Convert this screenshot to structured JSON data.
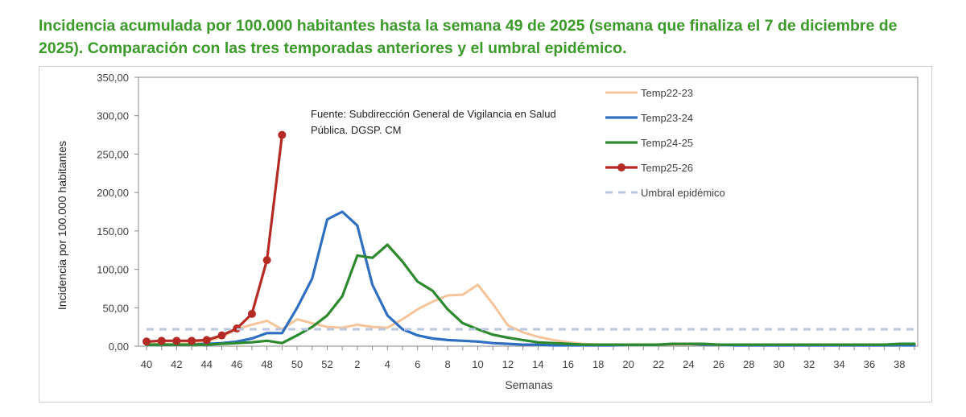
{
  "page": {
    "title": "Incidencia acumulada por 100.000 habitantes hasta la semana 49 de 2025 (semana que finaliza el 7 de diciembre de 2025). Comparación con las tres temporadas anteriores y el umbral epidémico."
  },
  "chart_data": {
    "type": "line",
    "title": "Incidencia acumulada por 100.000 habitantes hasta la semana 49 de 2025 (semana que finaliza el 7 de diciembre de 2025). Comparación con las tres temporadas anteriores y el umbral epidémico.",
    "xlabel": "Semanas",
    "ylabel": "Incidencia por 100.000 habitantes",
    "annotation": [
      "Fuente: Subdirección General de Vigilancia en Salud",
      "Pública. DGSP. CM"
    ],
    "ylim": [
      0,
      350
    ],
    "yticks": [
      "0,00",
      "50,00",
      "100,00",
      "150,00",
      "200,00",
      "250,00",
      "300,00",
      "350,00"
    ],
    "weeks": [
      40,
      41,
      42,
      43,
      44,
      45,
      46,
      47,
      48,
      49,
      50,
      51,
      52,
      1,
      2,
      3,
      4,
      5,
      6,
      7,
      8,
      9,
      10,
      11,
      12,
      13,
      14,
      15,
      16,
      17,
      18,
      19,
      20,
      21,
      22,
      23,
      24,
      25,
      26,
      27,
      28,
      29,
      30,
      31,
      32,
      33,
      34,
      35,
      36,
      37,
      38,
      39
    ],
    "xtick_labels": [
      "40",
      "42",
      "44",
      "46",
      "48",
      "50",
      "52",
      "2",
      "4",
      "6",
      "8",
      "10",
      "12",
      "14",
      "16",
      "18",
      "20",
      "22",
      "24",
      "26",
      "28",
      "30",
      "32",
      "34",
      "36",
      "38"
    ],
    "legend_position": "top-right",
    "series": [
      {
        "name": "Temp22-23",
        "color": "#f5c49a",
        "width": 3,
        "dash": "",
        "markers": false,
        "values": [
          3,
          3,
          3,
          4,
          6,
          12,
          22,
          28,
          33,
          22,
          35,
          30,
          25,
          24,
          28,
          25,
          24,
          35,
          48,
          58,
          66,
          67,
          80,
          55,
          27,
          18,
          12,
          8,
          5,
          3,
          2,
          2,
          2,
          2,
          2,
          2,
          2,
          2,
          2,
          2,
          2,
          2,
          2,
          2,
          2,
          2,
          2,
          2,
          2,
          2,
          2,
          2
        ]
      },
      {
        "name": "Temp23-24",
        "color": "#2f6fc2",
        "width": 3.2,
        "dash": "",
        "markers": false,
        "values": [
          2,
          2,
          2,
          2,
          3,
          4,
          6,
          10,
          17,
          17,
          50,
          88,
          165,
          175,
          157,
          80,
          40,
          22,
          14,
          10,
          8,
          7,
          6,
          4,
          3,
          2,
          2,
          1,
          1,
          1,
          1,
          1,
          2,
          2,
          2,
          3,
          3,
          2,
          2,
          1,
          1,
          1,
          1,
          1,
          1,
          1,
          1,
          1,
          1,
          1,
          1,
          1
        ]
      },
      {
        "name": "Temp24-25",
        "color": "#2e8a2e",
        "width": 3.2,
        "dash": "",
        "markers": false,
        "values": [
          2,
          2,
          2,
          2,
          2,
          3,
          4,
          5,
          7,
          4,
          14,
          25,
          40,
          65,
          118,
          115,
          132,
          110,
          84,
          72,
          48,
          30,
          22,
          15,
          11,
          8,
          5,
          4,
          3,
          2,
          2,
          2,
          2,
          2,
          2,
          3,
          3,
          3,
          2,
          2,
          2,
          2,
          2,
          2,
          2,
          2,
          2,
          2,
          2,
          2,
          3,
          3
        ]
      },
      {
        "name": "Temp25-26",
        "color": "#b52a24",
        "width": 3.2,
        "dash": "",
        "markers": true,
        "values": [
          6,
          7,
          7,
          7,
          8,
          14,
          23,
          42,
          112,
          275
        ]
      },
      {
        "name": "Umbral epidémico",
        "color": "#b9c7e0",
        "width": 3,
        "dash": "9,7",
        "markers": false,
        "values": [
          22,
          22,
          22,
          22,
          22,
          22,
          22,
          22,
          22,
          22,
          22,
          22,
          22,
          22,
          22,
          22,
          22,
          22,
          22,
          22,
          22,
          22,
          22,
          22,
          22,
          22,
          22,
          22,
          22,
          22,
          22,
          22,
          22,
          22,
          22,
          22,
          22,
          22,
          22,
          22,
          22,
          22,
          22,
          22,
          22,
          22,
          22,
          22,
          22,
          22,
          22,
          22
        ]
      }
    ]
  }
}
